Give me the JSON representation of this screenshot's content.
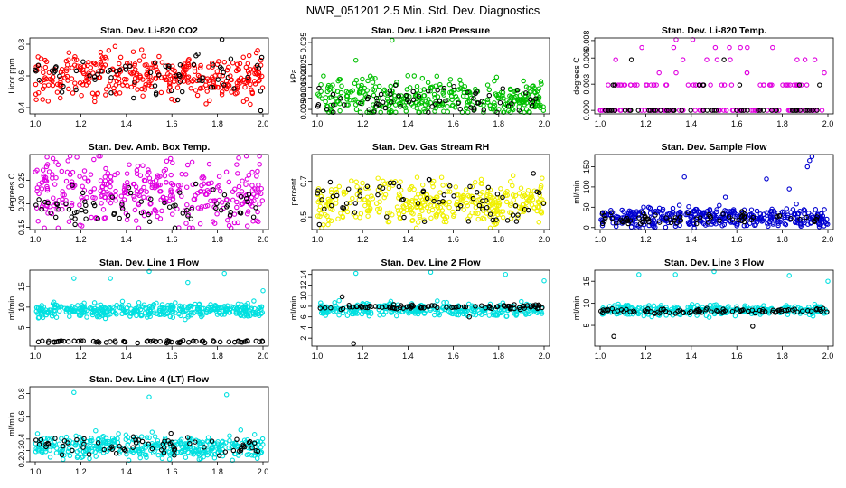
{
  "page_title": "NWR_051201  2.5 Min. Std. Dev. Diagnostics",
  "chart_data": [
    {
      "type": "scatter",
      "title": "Stan. Dev. Li-820 CO2",
      "ylabel": "Licor ppm",
      "xlim": [
        1.0,
        2.0
      ],
      "ylim": [
        0.36,
        0.84
      ],
      "xticks": [
        "1.0",
        "1.2",
        "1.4",
        "1.6",
        "1.8",
        "2.0"
      ],
      "yticks": [
        "0.4",
        "0.6",
        "0.8"
      ],
      "series": [
        {
          "color": "#ff0000",
          "center": 0.6,
          "spread": 0.07,
          "n": 360
        },
        {
          "color": "#000000",
          "center": 0.6,
          "spread": 0.07,
          "n": 70
        }
      ],
      "outliers": [
        {
          "x": 1.82,
          "y": 0.83,
          "color": "#000000"
        },
        {
          "x": 1.99,
          "y": 0.38,
          "color": "#000000"
        },
        {
          "x": 1.11,
          "y": 0.46,
          "color": "#ff0000"
        }
      ]
    },
    {
      "type": "scatter",
      "title": "Stan. Dev. Li-820 Pressure",
      "ylabel": "kPa",
      "xlim": [
        1.0,
        2.0
      ],
      "ylim": [
        0.003,
        0.037
      ],
      "xticks": [
        "1.0",
        "1.2",
        "1.4",
        "1.6",
        "1.8",
        "2.0"
      ],
      "yticks": [
        "0.005",
        "0.010",
        "0.015",
        "0.020",
        "0.025",
        "0.035"
      ],
      "series": [
        {
          "color": "#00c000",
          "center": 0.01,
          "spread": 0.004,
          "n": 360
        },
        {
          "color": "#000000",
          "center": 0.009,
          "spread": 0.003,
          "n": 70
        }
      ],
      "outliers": [
        {
          "x": 1.33,
          "y": 0.036,
          "color": "#00c000"
        },
        {
          "x": 1.17,
          "y": 0.027,
          "color": "#00c000"
        }
      ]
    },
    {
      "type": "scatter",
      "title": "Stan. Dev. Li-820 Temp.",
      "ylabel": "degrees C",
      "xlim": [
        1.0,
        2.0
      ],
      "ylim": [
        -0.0004,
        0.0083
      ],
      "xticks": [
        "1.0",
        "1.2",
        "1.4",
        "1.6",
        "1.8",
        "2.0"
      ],
      "yticks": [
        "0.000",
        "0.003",
        "0.006",
        "0.008"
      ],
      "levels": [
        0.0,
        0.0029,
        0.0043,
        0.0058,
        0.0072,
        0.0081
      ],
      "series": [
        {
          "color": "#e000e0",
          "center": 0.0,
          "spread": 0.0,
          "n": 150
        },
        {
          "color": "#000000",
          "center": 0.0,
          "spread": 0.0,
          "n": 60
        }
      ]
    },
    {
      "type": "scatter",
      "title": "Stan. Dev. Amb. Box Temp.",
      "ylabel": "degrees C",
      "xlim": [
        1.0,
        2.0
      ],
      "ylim": [
        0.145,
        0.305
      ],
      "xticks": [
        "1.0",
        "1.2",
        "1.4",
        "1.6",
        "1.8",
        "2.0"
      ],
      "yticks": [
        "0.15",
        "0.20",
        "0.25"
      ],
      "series": [
        {
          "color": "#e000e0",
          "center": 0.225,
          "spread": 0.035,
          "n": 360
        },
        {
          "color": "#000000",
          "center": 0.2,
          "spread": 0.02,
          "n": 70
        }
      ]
    },
    {
      "type": "scatter",
      "title": "Stan. Dev. Gas Stream RH",
      "ylabel": "percent",
      "xlim": [
        1.0,
        2.0
      ],
      "ylim": [
        0.43,
        0.85
      ],
      "xticks": [
        "1.0",
        "1.2",
        "1.4",
        "1.6",
        "1.8",
        "2.0"
      ],
      "yticks": [
        "0.5",
        "0.7"
      ],
      "series": [
        {
          "color": "#f0f000",
          "center": 0.58,
          "spread": 0.06,
          "n": 380
        },
        {
          "color": "#000000",
          "center": 0.59,
          "spread": 0.07,
          "n": 70
        }
      ]
    },
    {
      "type": "scatter",
      "title": "Stan. Dev. Sample Flow",
      "ylabel": "ml/min",
      "xlim": [
        1.0,
        2.0
      ],
      "ylim": [
        -5,
        180
      ],
      "xticks": [
        "1.0",
        "1.2",
        "1.4",
        "1.6",
        "1.8",
        "2.0"
      ],
      "yticks": [
        "0",
        "50",
        "100",
        "150"
      ],
      "series": [
        {
          "color": "#0000d0",
          "center": 25,
          "spread": 12,
          "n": 380
        },
        {
          "color": "#000000",
          "center": 22,
          "spread": 8,
          "n": 70
        }
      ],
      "outliers": [
        {
          "x": 1.93,
          "y": 175,
          "color": "#0000d0"
        },
        {
          "x": 1.92,
          "y": 165,
          "color": "#0000d0"
        },
        {
          "x": 1.91,
          "y": 150,
          "color": "#0000d0"
        },
        {
          "x": 1.37,
          "y": 125,
          "color": "#0000d0"
        },
        {
          "x": 1.73,
          "y": 120,
          "color": "#0000d0"
        },
        {
          "x": 1.83,
          "y": 95,
          "color": "#0000d0"
        },
        {
          "x": 1.55,
          "y": 75,
          "color": "#0000d0"
        }
      ]
    },
    {
      "type": "scatter",
      "title": "Stan. Dev. Line 1 Flow",
      "ylabel": "ml/min",
      "xlim": [
        1.0,
        2.0
      ],
      "ylim": [
        0.5,
        19
      ],
      "xticks": [
        "1.0",
        "1.2",
        "1.4",
        "1.6",
        "1.8",
        "2.0"
      ],
      "yticks": [
        "5",
        "10",
        "15"
      ],
      "series": [
        {
          "color": "#00e0e0",
          "center": 9.2,
          "spread": 0.8,
          "n": 380
        },
        {
          "color": "#000000",
          "center": 1.6,
          "spread": 0.15,
          "n": 70
        }
      ],
      "outliers": [
        {
          "x": 1.17,
          "y": 17,
          "color": "#00e0e0"
        },
        {
          "x": 1.33,
          "y": 17,
          "color": "#00e0e0"
        },
        {
          "x": 1.5,
          "y": 18.7,
          "color": "#00e0e0"
        },
        {
          "x": 1.67,
          "y": 16,
          "color": "#00e0e0"
        },
        {
          "x": 1.83,
          "y": 18.2,
          "color": "#00e0e0"
        },
        {
          "x": 2.0,
          "y": 14,
          "color": "#00e0e0"
        }
      ]
    },
    {
      "type": "scatter",
      "title": "Stan. Dev. Line 2 Flow",
      "ylabel": "ml/min",
      "xlim": [
        1.0,
        2.0
      ],
      "ylim": [
        0.5,
        14.8
      ],
      "xticks": [
        "1.0",
        "1.2",
        "1.4",
        "1.6",
        "1.8",
        "2.0"
      ],
      "yticks": [
        "2",
        "4",
        "6",
        "8",
        "10",
        "12",
        "14"
      ],
      "series": [
        {
          "color": "#00e0e0",
          "center": 7.4,
          "spread": 0.6,
          "n": 320
        },
        {
          "color": "#000000",
          "center": 7.9,
          "spread": 0.2,
          "n": 90
        }
      ],
      "outliers": [
        {
          "x": 1.17,
          "y": 14.2,
          "color": "#00e0e0"
        },
        {
          "x": 1.5,
          "y": 14.4,
          "color": "#00e0e0"
        },
        {
          "x": 1.83,
          "y": 14.0,
          "color": "#00e0e0"
        },
        {
          "x": 2.0,
          "y": 12.8,
          "color": "#00e0e0"
        },
        {
          "x": 1.11,
          "y": 9.8,
          "color": "#000000"
        },
        {
          "x": 1.67,
          "y": 6.0,
          "color": "#000000"
        },
        {
          "x": 1.16,
          "y": 1.0,
          "color": "#000000"
        }
      ]
    },
    {
      "type": "scatter",
      "title": "Stan. Dev. Line 3 Flow",
      "ylabel": "ml/min",
      "xlim": [
        1.0,
        2.0
      ],
      "ylim": [
        0.3,
        17.5
      ],
      "xticks": [
        "1.0",
        "1.2",
        "1.4",
        "1.6",
        "1.8",
        "2.0"
      ],
      "yticks": [
        "5",
        "10",
        "15"
      ],
      "series": [
        {
          "color": "#00e0e0",
          "center": 8.5,
          "spread": 0.6,
          "n": 320
        },
        {
          "color": "#000000",
          "center": 8.3,
          "spread": 0.3,
          "n": 90
        }
      ],
      "outliers": [
        {
          "x": 1.17,
          "y": 16.5,
          "color": "#00e0e0"
        },
        {
          "x": 1.33,
          "y": 16.5,
          "color": "#00e0e0"
        },
        {
          "x": 1.5,
          "y": 17.2,
          "color": "#00e0e0"
        },
        {
          "x": 1.83,
          "y": 16.3,
          "color": "#00e0e0"
        },
        {
          "x": 2.0,
          "y": 15.0,
          "color": "#00e0e0"
        },
        {
          "x": 1.06,
          "y": 2.5,
          "color": "#000000"
        },
        {
          "x": 1.67,
          "y": 4.8,
          "color": "#000000"
        }
      ]
    },
    {
      "type": "scatter",
      "title": "Stan. Dev. Line 4 (LT) Flow",
      "ylabel": "ml/min",
      "xlim": [
        1.0,
        2.0
      ],
      "ylim": [
        0.2,
        0.86
      ],
      "xticks": [
        "1.0",
        "1.2",
        "1.4",
        "1.6",
        "1.8",
        "2.0"
      ],
      "yticks": [
        "0.2",
        "0.3",
        "0.4",
        "0.6",
        "0.8"
      ],
      "series": [
        {
          "color": "#00e0e0",
          "center": 0.33,
          "spread": 0.05,
          "n": 380
        },
        {
          "color": "#000000",
          "center": 0.34,
          "spread": 0.04,
          "n": 70
        }
      ],
      "outliers": [
        {
          "x": 1.17,
          "y": 0.81,
          "color": "#00e0e0"
        },
        {
          "x": 1.5,
          "y": 0.77,
          "color": "#00e0e0"
        },
        {
          "x": 1.84,
          "y": 0.79,
          "color": "#00e0e0"
        }
      ]
    }
  ]
}
